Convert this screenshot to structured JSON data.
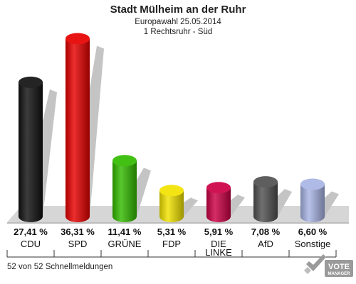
{
  "chart_data": {
    "type": "bar",
    "title": "Stadt Mülheim an der Ruhr",
    "subtitle_lines": [
      "Europawahl 25.05.2014",
      "1 Rechtsruhr - Süd"
    ],
    "categories": [
      "CDU",
      "SPD",
      "GRÜNE",
      "FDP",
      "DIE LINKE",
      "AfD",
      "Sonstige"
    ],
    "category_lines": [
      [
        "CDU"
      ],
      [
        "SPD"
      ],
      [
        "GRÜNE"
      ],
      [
        "FDP"
      ],
      [
        "DIE",
        "LINKE"
      ],
      [
        "AfD"
      ],
      [
        "Sonstige"
      ]
    ],
    "values": [
      27.41,
      36.31,
      11.41,
      5.31,
      5.91,
      7.08,
      6.6
    ],
    "value_labels": [
      "27,41 %",
      "36,31 %",
      "11,41 %",
      "5,31 %",
      "5,91 %",
      "7,08 %",
      "6,60 %"
    ],
    "colors": [
      "#111111",
      "#e60000",
      "#33bb00",
      "#f2e200",
      "#cc0044",
      "#505050",
      "#a8b4e4"
    ],
    "ylim": [
      0,
      40
    ],
    "xlabel": "",
    "ylabel": "",
    "grid": false,
    "legend": "none"
  },
  "footer": {
    "status": "52 von 52 Schnellmeldungen"
  },
  "logo": {
    "line1": "VOTE",
    "line2": "MANAGER",
    "icon": "checkmark-ballot-icon"
  }
}
